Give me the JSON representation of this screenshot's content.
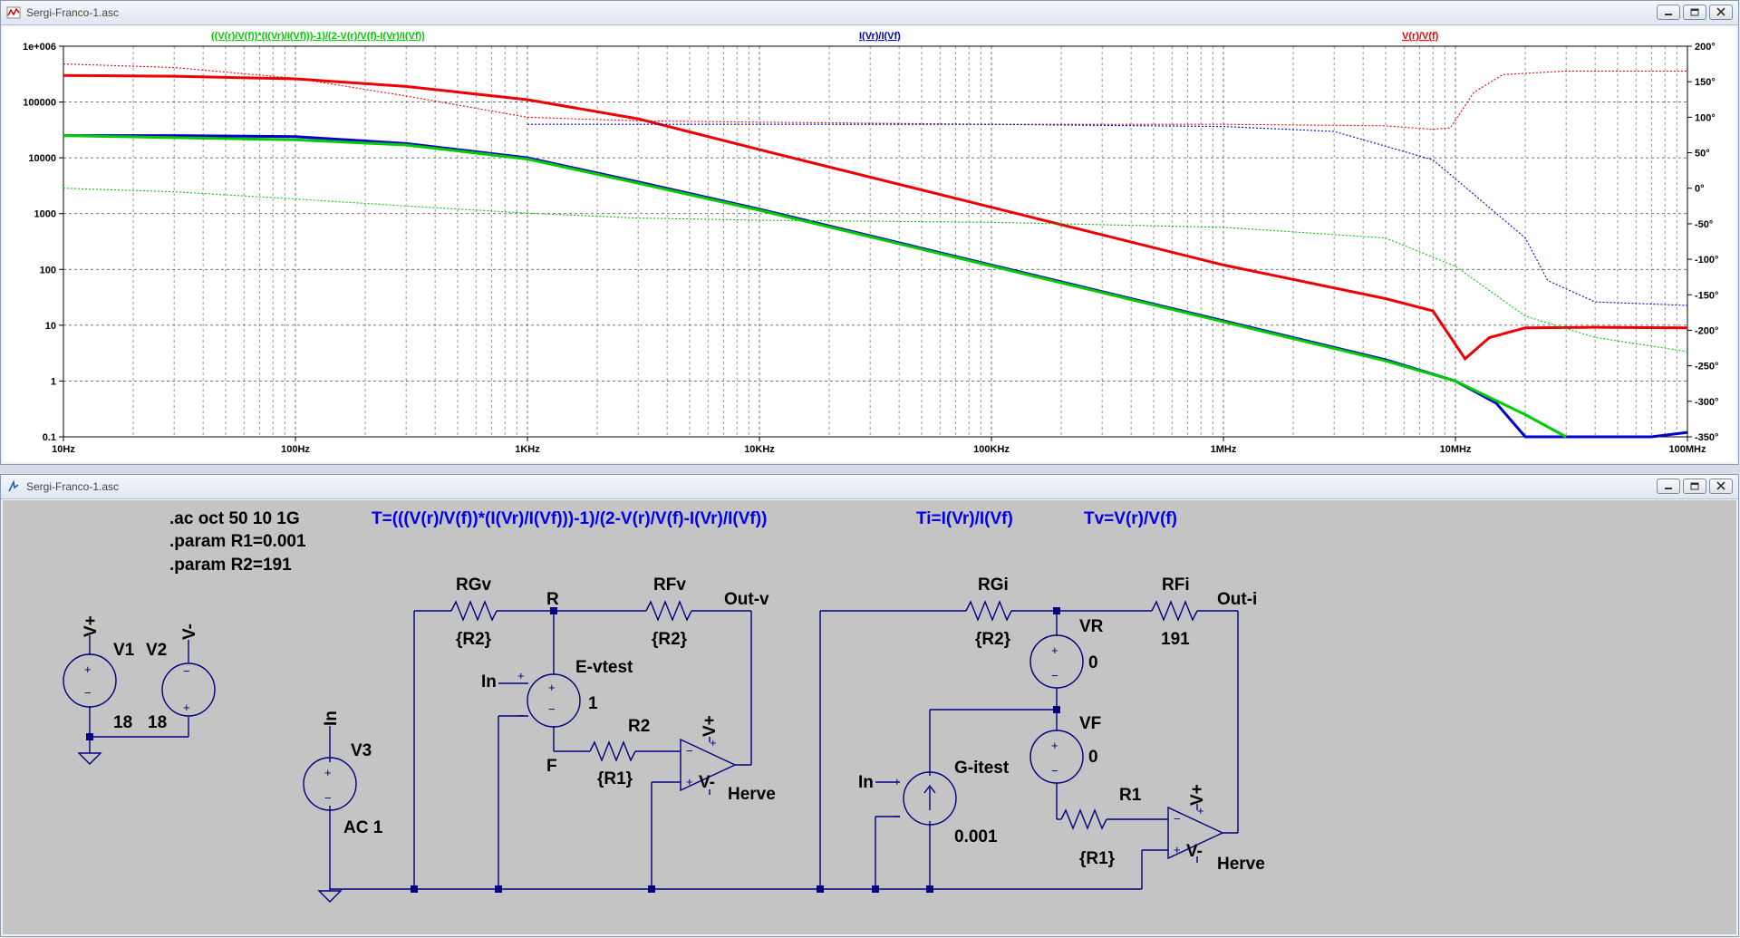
{
  "plot_window": {
    "title": "Sergi-Franco-1.asc",
    "trace_labels": [
      {
        "text": "((V(r)/V(f))*(I(Vr)/I(Vf)))-1)/(2-V(r)/V(f)-I(Vr)/I(Vf))",
        "color": "#00cc00"
      },
      {
        "text": "I(Vr)/I(Vf)",
        "color": "#0000cc"
      },
      {
        "text": "V(r)/V(f)",
        "color": "#ee0000"
      }
    ]
  },
  "schematic_window": {
    "title": "Sergi-Franco-1.asc",
    "directives": [
      ".ac oct 50 10 1G",
      ".param R1=0.001",
      ".param R2=191"
    ],
    "measure_T": "T=(((V(r)/V(f))*(I(Vr)/I(Vf)))-1)/(2-V(r)/V(f)-I(Vr)/I(Vf))",
    "measure_Ti": "Ti=I(Vr)/I(Vf)",
    "measure_Tv": "Tv=V(r)/V(f)",
    "labels": {
      "vplus": "V+",
      "vminus": "V-",
      "v1": "V1",
      "v2": "V2",
      "v1_val": "18",
      "v2_val": "18",
      "in": "In",
      "v3": "V3",
      "ac": "AC 1",
      "rgv": "RGv",
      "rgv_val": "{R2}",
      "r_node": "R",
      "rfv": "RFv",
      "rfv_val": "{R2}",
      "out_v": "Out-v",
      "evtest": "E-vtest",
      "e_gain": "1",
      "f_node": "F",
      "r2": "R2",
      "r2_val": "{R1}",
      "herve": "Herve",
      "rgi": "RGi",
      "rgi_val": "{R2}",
      "rfi": "RFi",
      "rfi_val": "191",
      "out_i": "Out-i",
      "vr": "VR",
      "vr_val": "0",
      "vf": "VF",
      "vf_val": "0",
      "gitest": "G-itest",
      "g_val": "0.001",
      "r1": "R1",
      "r1_val": "{R1}"
    }
  },
  "chart_data": {
    "type": "line",
    "title": "",
    "x_scale": "log",
    "x_range": [
      10,
      100000000
    ],
    "x_ticks": [
      "10Hz",
      "100Hz",
      "1KHz",
      "10KHz",
      "100KHz",
      "1MHz",
      "10MHz",
      "100MHz"
    ],
    "y_scale": "log",
    "y_range": [
      0.1,
      1000000
    ],
    "y_ticks": [
      "1e+006",
      "100000",
      "10000",
      "1000",
      "100",
      "10",
      "1",
      "0.1"
    ],
    "y2_range": [
      -350,
      200
    ],
    "y2_ticks": [
      "200°",
      "150°",
      "100°",
      "50°",
      "0°",
      "-50°",
      "-100°",
      "-150°",
      "-200°",
      "-250°",
      "-300°",
      "-350°"
    ],
    "grid": true,
    "series": [
      {
        "name": "V(r)/V(f)",
        "color": "#ee0000",
        "kind": "magnitude",
        "x": [
          10,
          30,
          100,
          300,
          1000,
          3000,
          10000,
          100000,
          1000000,
          5000000,
          8000000,
          11000000,
          14000000,
          20000000,
          40000000,
          100000000
        ],
        "y": [
          300000,
          290000,
          260000,
          190000,
          110000,
          50000,
          14000,
          1300,
          120,
          30,
          18,
          2.5,
          6,
          9,
          9.2,
          9
        ]
      },
      {
        "name": "V(r)/V(f)",
        "color": "#ee0000",
        "kind": "phase",
        "x": [
          10,
          30,
          100,
          300,
          1000,
          3000,
          10000,
          100000,
          1000000,
          5000000,
          8000000,
          9500000,
          12000000,
          16000000,
          30000000,
          100000000
        ],
        "y": [
          175,
          170,
          155,
          130,
          100,
          95,
          93,
          90,
          90,
          88,
          83,
          85,
          135,
          160,
          165,
          165
        ]
      },
      {
        "name": "I(Vr)/I(Vf)",
        "color": "#0000cc",
        "kind": "magnitude",
        "x": [
          10,
          30,
          100,
          300,
          1000,
          3000,
          10000,
          100000,
          1000000,
          5000000,
          10000000,
          15000000,
          20000000,
          70000000,
          100000000
        ],
        "y": [
          25000,
          25000,
          24000,
          18000,
          10000,
          3700,
          1200,
          120,
          12,
          2.4,
          1,
          0.4,
          0.1,
          0.1,
          0.12
        ]
      },
      {
        "name": "I(Vr)/I(Vf)",
        "color": "#0000cc",
        "kind": "phase",
        "x": [
          1000,
          10000,
          100000,
          1000000,
          3000000,
          8000000,
          20000000,
          25000000,
          40000000,
          100000000
        ],
        "y": [
          90,
          90,
          90,
          87,
          80,
          40,
          -70,
          -130,
          -160,
          -165
        ]
      },
      {
        "name": "((V(r)/V(f))*(I(Vr)/I(Vf)))-1)/(2-V(r)/V(f)-I(Vr)/I(Vf))",
        "color": "#00cc00",
        "kind": "magnitude",
        "x": [
          10,
          30,
          100,
          300,
          1000,
          3000,
          10000,
          100000,
          1000000,
          5000000,
          10000000,
          20000000,
          30000000
        ],
        "y": [
          25000,
          23000,
          21000,
          17000,
          9500,
          3500,
          1150,
          115,
          11.5,
          2.3,
          1,
          0.25,
          0.1
        ]
      },
      {
        "name": "((V(r)/V(f))*(I(Vr)/I(Vf)))-1)/(2-V(r)/V(f)-I(Vr)/I(Vf))",
        "color": "#00cc00",
        "kind": "phase",
        "x": [
          10,
          30,
          100,
          300,
          1000,
          3000,
          10000,
          100000,
          1000000,
          5000000,
          10000000,
          20000000,
          40000000,
          100000000
        ],
        "y": [
          0,
          -5,
          -15,
          -25,
          -35,
          -42,
          -45,
          -48,
          -55,
          -70,
          -110,
          -180,
          -210,
          -230
        ]
      }
    ]
  }
}
